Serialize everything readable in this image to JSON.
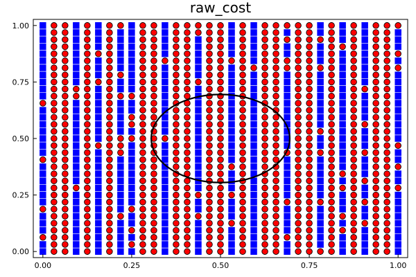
{
  "chart_data": {
    "type": "scatter",
    "title": "raw_cost",
    "xlabel": "",
    "ylabel": "",
    "xlim": [
      -0.027,
      1.027
    ],
    "ylim": [
      -0.027,
      1.027
    ],
    "x_ticks": [
      0.0,
      0.25,
      0.5,
      0.75,
      1.0
    ],
    "x_tick_labels": [
      "0.00",
      "0.25",
      "0.50",
      "0.75",
      "1.00"
    ],
    "y_ticks": [
      0.0,
      0.25,
      0.5,
      0.75,
      1.0
    ],
    "y_tick_labels": [
      "0.00",
      "0.25",
      "0.50",
      "0.75",
      "1.00"
    ],
    "grid": false,
    "legend": "none",
    "grid_points": {
      "x_start": 0.0,
      "x_end": 1.0,
      "x_count": 33,
      "y_start": 0.0,
      "y_end": 1.0,
      "y_count": 33
    },
    "series": [
      {
        "marker": "square",
        "color": "#0000ff",
        "columns_x": [
          0.0,
          0.0938,
          0.1563,
          0.2188,
          0.25,
          0.3438,
          0.4375,
          0.5313,
          0.5938,
          0.6875,
          0.7813,
          0.8438,
          0.9063,
          1.0
        ],
        "column_y_ranges": [
          [
            0.0,
            1.0
          ]
        ]
      },
      {
        "marker": "circle",
        "color": "#ff0000",
        "note_columns": "all remaining grid columns",
        "columns_x_all": "grid"
      }
    ],
    "annotations": [
      {
        "type": "ellipse",
        "center": [
          0.5,
          0.5
        ],
        "rx": 0.195,
        "ry": 0.195,
        "color": "#000000"
      }
    ]
  },
  "colors": {
    "square": "#0000ff",
    "circle": "#ff0000",
    "marker_edge": "#000000",
    "axis": "#000000"
  }
}
